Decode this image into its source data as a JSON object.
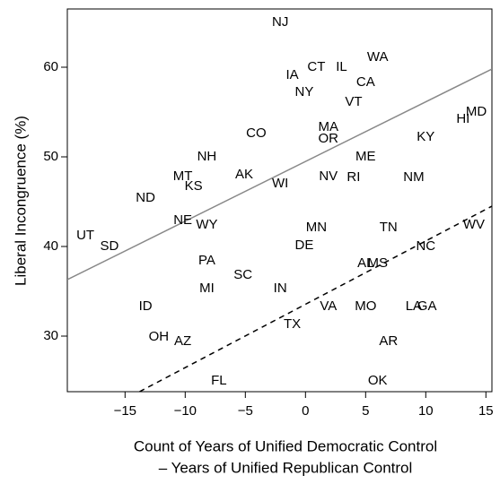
{
  "chart_data": {
    "type": "scatter",
    "xlabel": [
      "Count of Years of Unified Democratic Control",
      "– Years of Unified Republican Control"
    ],
    "ylabel": "Liberal Incongruence (%)",
    "labels": [
      "NJ",
      "WA",
      "CT",
      "IL",
      "IA",
      "CA",
      "NY",
      "VT",
      "MD",
      "HI",
      "MA",
      "CO",
      "KY",
      "OR",
      "NH",
      "ME",
      "AK",
      "MT",
      "NV",
      "RI",
      "NM",
      "KS",
      "WI",
      "ND",
      "NE",
      "WY",
      "MN",
      "TN",
      "WV",
      "UT",
      "DE",
      "NC",
      "SD",
      "PA",
      "AL",
      "MS",
      "SC",
      "MI",
      "IN",
      "ID",
      "VA",
      "MO",
      "LA",
      "GA",
      "TX",
      "OH",
      "AZ",
      "AR",
      "FL",
      "OK"
    ],
    "x": [
      -2.1,
      6.0,
      0.9,
      3.0,
      -1.1,
      5.0,
      -0.1,
      4.0,
      14.2,
      13.1,
      1.9,
      -4.1,
      10.0,
      1.9,
      -8.2,
      5.0,
      -5.1,
      -10.2,
      1.9,
      4.0,
      9.0,
      -9.3,
      -2.1,
      -13.3,
      -10.2,
      -8.2,
      0.9,
      6.9,
      14.0,
      -18.3,
      -0.1,
      10.0,
      -16.3,
      -8.2,
      5.0,
      6.0,
      -5.2,
      -8.2,
      -2.1,
      -13.3,
      1.9,
      5.0,
      9.0,
      10.1,
      -1.1,
      -12.2,
      -10.2,
      6.9,
      -7.2,
      6.0
    ],
    "y": [
      65.0,
      61.1,
      60.0,
      60.0,
      59.1,
      58.3,
      57.2,
      56.1,
      55.0,
      54.2,
      53.3,
      52.6,
      52.2,
      52.0,
      50.0,
      50.0,
      48.0,
      47.8,
      47.8,
      47.7,
      47.7,
      46.7,
      47.0,
      45.4,
      42.9,
      42.4,
      42.1,
      42.1,
      42.4,
      41.2,
      40.1,
      40.0,
      40.0,
      38.4,
      38.1,
      38.1,
      36.8,
      35.3,
      35.3,
      33.3,
      33.3,
      33.3,
      33.3,
      33.3,
      31.3,
      29.9,
      29.4,
      29.4,
      25.0,
      25.0
    ],
    "lines": [
      {
        "style": "solid",
        "color": "#888888",
        "x": [
          -19.8,
          15.5
        ],
        "y": [
          36.3,
          59.8
        ]
      },
      {
        "style": "dashed",
        "color": "#000000",
        "x": [
          -13.8,
          15.5
        ],
        "y": [
          23.8,
          44.5
        ]
      }
    ],
    "xlim": [
      -19.8,
      15.5
    ],
    "ylim": [
      23.8,
      66.5
    ],
    "xticks": [
      {
        "value": -15,
        "label": "−15"
      },
      {
        "value": -10,
        "label": "−10"
      },
      {
        "value": -5,
        "label": "−5"
      },
      0,
      5,
      10,
      15
    ],
    "yticks": [
      30,
      40,
      50,
      60
    ]
  }
}
